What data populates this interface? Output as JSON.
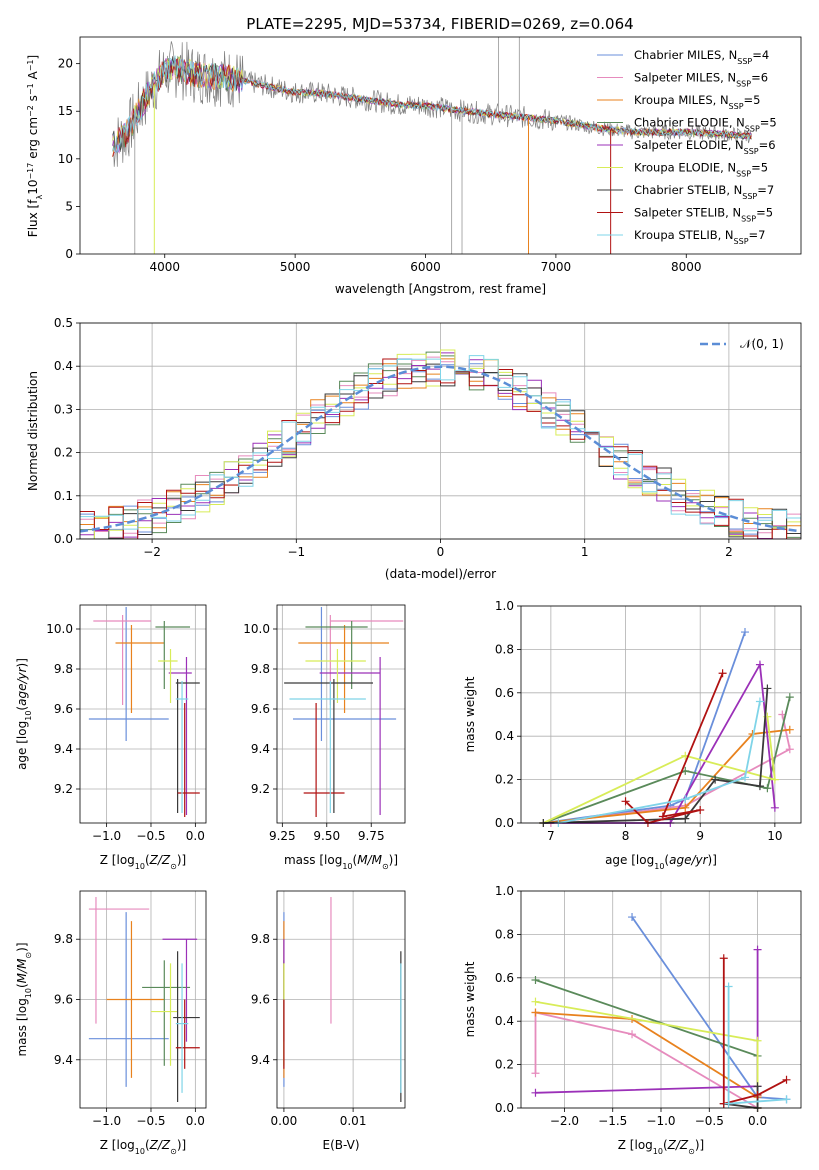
{
  "figure_title": "PLATE=2295, MJD=53734, FIBERID=0269, z=0.064",
  "colors": {
    "model_colors": [
      "#6a8fdb",
      "#e68bbd",
      "#e8821e",
      "#5a8a5a",
      "#9b30b8",
      "#d8ec58",
      "#3a3a3a",
      "#b01212",
      "#7fd4e8"
    ],
    "data_grey": "#7f7f7f",
    "gaussian": "#5b8dd6"
  },
  "chart_data": [
    {
      "id": "spectrum",
      "type": "line",
      "title": "",
      "xlabel": "wavelength [Angstrom, rest frame]",
      "ylabel": "Flux [f",
      "xlim": [
        3350,
        8880
      ],
      "ylim": [
        0,
        22.8
      ],
      "xticks": [
        4000,
        5000,
        6000,
        7000,
        8000
      ],
      "yticks": [
        0,
        5,
        10,
        15,
        20
      ],
      "grid": false,
      "legend_position": "top-right",
      "legend": [
        {
          "imf": "Chabrier",
          "lib": "MILES",
          "n": "4"
        },
        {
          "imf": "Salpeter",
          "lib": "MILES",
          "n": "6"
        },
        {
          "imf": "Kroupa",
          "lib": "MILES",
          "n": "5"
        },
        {
          "imf": "Chabrier",
          "lib": "ELODIE",
          "n": "5"
        },
        {
          "imf": "Salpeter",
          "lib": "ELODIE",
          "n": "6"
        },
        {
          "imf": "Kroupa",
          "lib": "ELODIE",
          "n": "5"
        },
        {
          "imf": "Chabrier",
          "lib": "STELIB",
          "n": "7"
        },
        {
          "imf": "Salpeter",
          "lib": "STELIB",
          "n": "5"
        },
        {
          "imf": "Kroupa",
          "lib": "STELIB",
          "n": "7"
        }
      ],
      "continuum_x": [
        3600,
        3700,
        3800,
        3900,
        4000,
        4100,
        4200,
        4300,
        4500,
        4800,
        5000,
        5200,
        5500,
        5800,
        6000,
        6200,
        6500,
        6800,
        7000,
        7300,
        7600,
        8000,
        8300,
        8500
      ],
      "continuum_y": [
        11.5,
        12.5,
        15.0,
        17.5,
        19.2,
        19.5,
        19.0,
        18.8,
        18.5,
        17.6,
        17.0,
        16.9,
        16.3,
        15.7,
        15.6,
        15.2,
        14.7,
        14.3,
        14.0,
        13.3,
        12.8,
        12.8,
        12.6,
        12.4
      ],
      "dropouts_x": [
        3770,
        3920,
        6200,
        6280,
        6790,
        7420
      ],
      "spikes_x": [
        6560,
        6720
      ]
    },
    {
      "id": "residuals",
      "type": "histogram",
      "title": "",
      "xlabel": "(data-model)/error",
      "ylabel": "Normed distribution",
      "xlim": [
        -2.5,
        2.5
      ],
      "ylim": [
        0,
        0.5
      ],
      "xticks": [
        -2,
        -1,
        0,
        1,
        2
      ],
      "yticks": [
        0.0,
        0.1,
        0.2,
        0.3,
        0.4,
        0.5
      ],
      "grid": true,
      "bin_width": 0.1,
      "legend": "𝒩(0, 1)",
      "legend_position": "top-right",
      "gaussian": {
        "mu": 0,
        "sigma": 1
      }
    },
    {
      "id": "age_vs_Z",
      "type": "errorbar",
      "title": "",
      "xlabel": "Z [log10(Z/Z⊙)]",
      "ylabel": "age [log10(age/yr)]",
      "xlim": [
        -1.3,
        0.12
      ],
      "ylim": [
        9.03,
        10.12
      ],
      "xticks": [
        -1.0,
        -0.5,
        0.0
      ],
      "yticks": [
        9.2,
        9.4,
        9.6,
        9.8,
        10.0
      ],
      "grid": true,
      "points": [
        {
          "x": -0.78,
          "xlo": -1.2,
          "xhi": -0.3,
          "y": 9.55,
          "ylo": 9.44,
          "yhi": 10.11
        },
        {
          "x": -0.82,
          "xlo": -1.15,
          "xhi": -0.5,
          "y": 10.04,
          "ylo": 9.62,
          "yhi": 10.07
        },
        {
          "x": -0.72,
          "xlo": -0.9,
          "xhi": -0.35,
          "y": 9.93,
          "ylo": 9.58,
          "yhi": 10.02
        },
        {
          "x": -0.35,
          "xlo": -0.45,
          "xhi": -0.06,
          "y": 10.01,
          "ylo": 9.7,
          "yhi": 10.04
        },
        {
          "x": -0.1,
          "xlo": -0.3,
          "xhi": -0.04,
          "y": 9.78,
          "ylo": 9.07,
          "yhi": 9.86
        },
        {
          "x": -0.28,
          "xlo": -0.42,
          "xhi": -0.2,
          "y": 9.84,
          "ylo": 9.63,
          "yhi": 9.9
        },
        {
          "x": -0.2,
          "xlo": -0.22,
          "xhi": 0.05,
          "y": 9.73,
          "ylo": 9.08,
          "yhi": 9.75
        },
        {
          "x": -0.12,
          "xlo": -0.2,
          "xhi": 0.05,
          "y": 9.18,
          "ylo": 9.06,
          "yhi": 9.63
        },
        {
          "x": -0.15,
          "xlo": -0.22,
          "xhi": -0.08,
          "y": 9.65,
          "ylo": 9.08,
          "yhi": 9.74
        }
      ]
    },
    {
      "id": "age_vs_mass",
      "type": "errorbar",
      "title": "",
      "xlabel": "mass [log10(M/M⊙)]",
      "ylabel": "",
      "xlim": [
        9.22,
        9.94
      ],
      "ylim": [
        9.03,
        10.12
      ],
      "xticks": [
        9.25,
        9.5,
        9.75
      ],
      "yticks": [
        9.2,
        9.4,
        9.6,
        9.8,
        10.0
      ],
      "grid": true,
      "points": [
        {
          "x": 9.47,
          "xlo": 9.31,
          "xhi": 9.89,
          "y": 9.55,
          "ylo": 9.44,
          "yhi": 10.11
        },
        {
          "x": 9.52,
          "xlo": 9.52,
          "xhi": 9.93,
          "y": 10.04,
          "ylo": 9.62,
          "yhi": 10.07
        },
        {
          "x": 9.6,
          "xlo": 9.34,
          "xhi": 9.85,
          "y": 9.93,
          "ylo": 9.58,
          "yhi": 10.02
        },
        {
          "x": 9.64,
          "xlo": 9.38,
          "xhi": 9.73,
          "y": 10.01,
          "ylo": 9.7,
          "yhi": 10.04
        },
        {
          "x": 9.8,
          "xlo": 9.46,
          "xhi": 9.8,
          "y": 9.78,
          "ylo": 9.07,
          "yhi": 9.86
        },
        {
          "x": 9.56,
          "xlo": 9.38,
          "xhi": 9.72,
          "y": 9.84,
          "ylo": 9.63,
          "yhi": 9.9
        },
        {
          "x": 9.54,
          "xlo": 9.26,
          "xhi": 9.76,
          "y": 9.73,
          "ylo": 9.08,
          "yhi": 9.75
        },
        {
          "x": 9.44,
          "xlo": 9.37,
          "xhi": 9.6,
          "y": 9.18,
          "ylo": 9.06,
          "yhi": 9.63
        },
        {
          "x": 9.52,
          "xlo": 9.29,
          "xhi": 9.72,
          "y": 9.65,
          "ylo": 9.08,
          "yhi": 9.74
        }
      ]
    },
    {
      "id": "weight_vs_age",
      "type": "line",
      "title": "",
      "xlabel": "age [log10(age/yr)]",
      "ylabel": "mass weight",
      "xlim": [
        6.6,
        10.35
      ],
      "ylim": [
        0,
        1.0
      ],
      "xticks": [
        7,
        8,
        9,
        10
      ],
      "yticks": [
        0.0,
        0.2,
        0.4,
        0.6,
        0.8,
        1.0
      ],
      "grid": true,
      "series": [
        {
          "x": [
            6.9,
            8.6,
            8.8,
            9.6
          ],
          "y": [
            0.0,
            0.08,
            0.11,
            0.88
          ]
        },
        {
          "x": [
            7.0,
            8.8,
            10.2,
            10.1
          ],
          "y": [
            0.0,
            0.08,
            0.34,
            0.5
          ]
        },
        {
          "x": [
            6.9,
            8.8,
            9.7,
            10.2
          ],
          "y": [
            0.0,
            0.07,
            0.41,
            0.43
          ]
        },
        {
          "x": [
            6.9,
            8.8,
            9.9,
            10.2
          ],
          "y": [
            0.0,
            0.24,
            0.16,
            0.58
          ]
        },
        {
          "x": [
            6.9,
            8.6,
            9.8,
            10.0
          ],
          "y": [
            0.0,
            0.0,
            0.73,
            0.07
          ]
        },
        {
          "x": [
            6.9,
            8.8,
            10.0,
            9.9
          ],
          "y": [
            0.0,
            0.31,
            0.2,
            0.49
          ]
        },
        {
          "x": [
            6.9,
            8.8,
            9.2,
            9.8,
            9.9
          ],
          "y": [
            0.0,
            0.02,
            0.2,
            0.17,
            0.62
          ]
        },
        {
          "x": [
            8.0,
            8.3,
            9.0,
            8.5,
            9.3
          ],
          "y": [
            0.1,
            0.0,
            0.06,
            0.03,
            0.69
          ]
        },
        {
          "x": [
            7.1,
            8.8,
            9.6,
            9.8
          ],
          "y": [
            0.0,
            0.11,
            0.21,
            0.56
          ]
        }
      ]
    },
    {
      "id": "mass_vs_Z",
      "type": "errorbar",
      "title": "",
      "xlabel": "Z [log10(Z/Z⊙)]",
      "ylabel": "mass [log10(M/M⊙)]",
      "xlim": [
        -1.3,
        0.12
      ],
      "ylim": [
        9.24,
        9.96
      ],
      "xticks": [
        -1.0,
        -0.5,
        0.0
      ],
      "yticks": [
        9.4,
        9.6,
        9.8
      ],
      "grid": true,
      "points": [
        {
          "x": -0.78,
          "xlo": -1.2,
          "xhi": -0.3,
          "y": 9.47,
          "ylo": 9.31,
          "yhi": 9.89
        },
        {
          "x": -1.12,
          "xlo": -1.2,
          "xhi": -0.52,
          "y": 9.9,
          "ylo": 9.52,
          "yhi": 9.94
        },
        {
          "x": -0.72,
          "xlo": -1.0,
          "xhi": -0.35,
          "y": 9.6,
          "ylo": 9.34,
          "yhi": 9.86
        },
        {
          "x": -0.35,
          "xlo": -0.6,
          "xhi": -0.06,
          "y": 9.64,
          "ylo": 9.38,
          "yhi": 9.73
        },
        {
          "x": -0.1,
          "xlo": -0.37,
          "xhi": 0.02,
          "y": 9.8,
          "ylo": 9.46,
          "yhi": 9.8
        },
        {
          "x": -0.28,
          "xlo": -0.5,
          "xhi": -0.2,
          "y": 9.56,
          "ylo": 9.38,
          "yhi": 9.72
        },
        {
          "x": -0.2,
          "xlo": -0.25,
          "xhi": 0.05,
          "y": 9.54,
          "ylo": 9.26,
          "yhi": 9.76
        },
        {
          "x": -0.12,
          "xlo": -0.22,
          "xhi": 0.05,
          "y": 9.44,
          "ylo": 9.37,
          "yhi": 9.6
        },
        {
          "x": -0.15,
          "xlo": -0.22,
          "xhi": -0.08,
          "y": 9.52,
          "ylo": 9.29,
          "yhi": 9.72
        }
      ]
    },
    {
      "id": "mass_vs_ebv",
      "type": "errorbar",
      "title": "",
      "xlabel": "E(B-V)",
      "ylabel": "",
      "xlim": [
        -0.001,
        0.0175
      ],
      "ylim": [
        9.24,
        9.96
      ],
      "xticks": [
        0.0,
        0.01
      ],
      "yticks": [
        9.4,
        9.6,
        9.8
      ],
      "grid": true,
      "points": [
        {
          "x": 0.0,
          "y": 9.47,
          "ylo": 9.31,
          "yhi": 9.89
        },
        {
          "x": 0.0068,
          "y": 9.9,
          "ylo": 9.52,
          "yhi": 9.94
        },
        {
          "x": 0.0,
          "y": 9.6,
          "ylo": 9.34,
          "yhi": 9.86
        },
        {
          "x": 0.0,
          "y": 9.64,
          "ylo": 9.38,
          "yhi": 9.73
        },
        {
          "x": 0.0,
          "y": 9.8,
          "ylo": 9.46,
          "yhi": 9.8
        },
        {
          "x": 0.0,
          "y": 9.56,
          "ylo": 9.38,
          "yhi": 9.72
        },
        {
          "x": 0.0169,
          "y": 9.54,
          "ylo": 9.26,
          "yhi": 9.76
        },
        {
          "x": 0.0,
          "y": 9.44,
          "ylo": 9.37,
          "yhi": 9.6
        },
        {
          "x": 0.0169,
          "y": 9.52,
          "ylo": 9.29,
          "yhi": 9.72
        }
      ]
    },
    {
      "id": "weight_vs_Z",
      "type": "line",
      "title": "",
      "xlabel": "Z [log10(Z/Z⊙)]",
      "ylabel": "mass weight",
      "xlim": [
        -2.45,
        0.45
      ],
      "ylim": [
        0,
        1.0
      ],
      "xticks": [
        -2.0,
        -1.5,
        -1.0,
        -0.5,
        0.0
      ],
      "yticks": [
        0.0,
        0.2,
        0.4,
        0.6,
        0.8,
        1.0
      ],
      "grid": true,
      "series": [
        {
          "x": [
            -1.3,
            0.0,
            0.3
          ],
          "y": [
            0.88,
            0.05,
            0.04
          ]
        },
        {
          "x": [
            -2.3,
            -2.3,
            -1.3,
            0.0
          ],
          "y": [
            0.16,
            0.44,
            0.34,
            0.0
          ]
        },
        {
          "x": [
            -2.3,
            -1.3,
            0.0,
            0.0
          ],
          "y": [
            0.44,
            0.41,
            0.05,
            0.0
          ]
        },
        {
          "x": [
            -2.3,
            0.0,
            0.0
          ],
          "y": [
            0.59,
            0.24,
            0.0
          ]
        },
        {
          "x": [
            -2.3,
            0.0,
            0.0,
            0.0
          ],
          "y": [
            0.07,
            0.1,
            0.73,
            0.0
          ]
        },
        {
          "x": [
            -2.3,
            0.0,
            0.0
          ],
          "y": [
            0.49,
            0.31,
            0.0
          ]
        },
        {
          "x": [
            -0.35,
            0.0,
            0.0
          ],
          "y": [
            0.02,
            0.0,
            0.1
          ]
        },
        {
          "x": [
            -0.35,
            -0.35,
            0.0,
            0.3
          ],
          "y": [
            0.69,
            0.02,
            0.06,
            0.13
          ]
        },
        {
          "x": [
            -0.3,
            -0.3,
            0.3
          ],
          "y": [
            0.56,
            0.02,
            0.04
          ]
        }
      ]
    }
  ]
}
